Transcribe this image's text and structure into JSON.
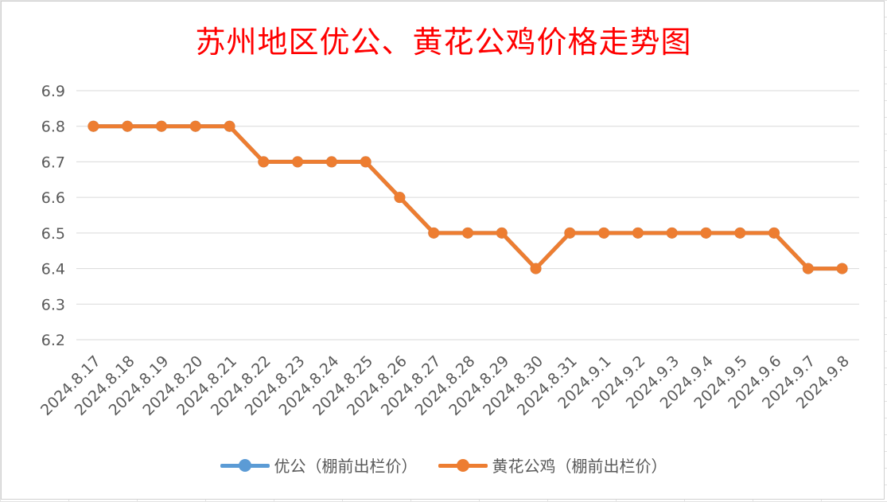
{
  "chart_data": {
    "type": "line",
    "title": "苏州地区优公、黄花公鸡价格走势图",
    "xlabel": "",
    "ylabel": "",
    "ylim": [
      6.2,
      6.9
    ],
    "yticks": [
      "6.9",
      "6.8",
      "6.7",
      "6.6",
      "6.5",
      "6.4",
      "6.3",
      "6.2"
    ],
    "grid": true,
    "legend_position": "bottom",
    "categories": [
      "2024.8.17",
      "2024.8.18",
      "2024.8.19",
      "2024.8.20",
      "2024.8.21",
      "2024.8.22",
      "2024.8.23",
      "2024.8.24",
      "2024.8.25",
      "2024.8.26",
      "2024.8.27",
      "2024.8.28",
      "2024.8.29",
      "2024.8.30",
      "2024.8.31",
      "2024.9.1",
      "2024.9.2",
      "2024.9.3",
      "2024.9.4",
      "2024.9.5",
      "2024.9.6",
      "2024.9.7",
      "2024.9.8"
    ],
    "series": [
      {
        "name": "优公（棚前出栏价）",
        "color": "#5b9bd5",
        "values": [
          6.8,
          6.8,
          6.8,
          6.8,
          6.8,
          6.7,
          6.7,
          6.7,
          6.7,
          6.6,
          6.5,
          6.5,
          6.5,
          6.4,
          6.5,
          6.5,
          6.5,
          6.5,
          6.5,
          6.5,
          6.5,
          6.4,
          6.4
        ]
      },
      {
        "name": "黄花公鸡（棚前出栏价）",
        "color": "#ed7d31",
        "values": [
          6.8,
          6.8,
          6.8,
          6.8,
          6.8,
          6.7,
          6.7,
          6.7,
          6.7,
          6.6,
          6.5,
          6.5,
          6.5,
          6.4,
          6.5,
          6.5,
          6.5,
          6.5,
          6.5,
          6.5,
          6.5,
          6.4,
          6.4
        ]
      }
    ]
  }
}
